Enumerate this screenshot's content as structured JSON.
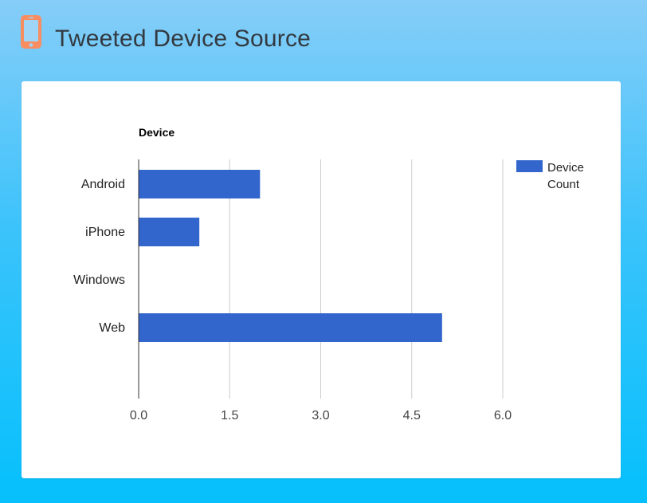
{
  "header": {
    "title": "Tweeted Device Source",
    "icon": "mobile-phone-icon",
    "icon_color": "#f98d62"
  },
  "chart_data": {
    "type": "bar",
    "orientation": "horizontal",
    "title": "",
    "ylabel": "Device",
    "xlabel": "",
    "categories": [
      "Android",
      "iPhone",
      "Windows",
      "Web"
    ],
    "series": [
      {
        "name": "Device Count",
        "values": [
          2,
          1,
          0,
          5
        ],
        "color": "#3366cc"
      }
    ],
    "xlim": [
      0,
      6
    ],
    "xticks": [
      "0.0",
      "1.5",
      "3.0",
      "4.5",
      "6.0"
    ],
    "grid": true,
    "legend": "right"
  }
}
